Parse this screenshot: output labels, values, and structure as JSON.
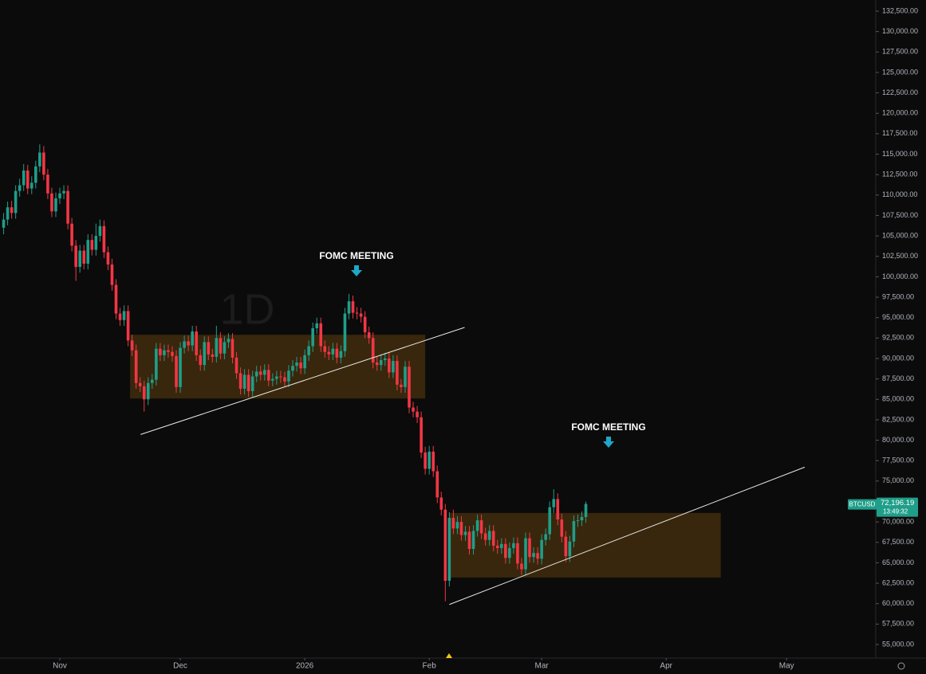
{
  "chart_data": {
    "type": "candlestick",
    "watermark": "1D",
    "symbol": "BTCUSD",
    "last_price_label": "72,196.19",
    "countdown": "13:49:32",
    "up_color": "#1f9e89",
    "down_color": "#f23645",
    "x": [
      -14,
      -13,
      -12,
      -11,
      -10,
      -9,
      -8,
      -7,
      -6,
      -5,
      -4,
      -3,
      -2,
      -1,
      0,
      1,
      2,
      3,
      4,
      5,
      6,
      7,
      8,
      9,
      10,
      11,
      12,
      13,
      14,
      15,
      16,
      17,
      18,
      19,
      20,
      21,
      22,
      23,
      24,
      25,
      26,
      27,
      28,
      29,
      30,
      31,
      32,
      33,
      34,
      35,
      36,
      37,
      38,
      39,
      40,
      41,
      42,
      43,
      44,
      45,
      46,
      47,
      48,
      49,
      50,
      51,
      52,
      53,
      54,
      55,
      56,
      57,
      58,
      59,
      60,
      61,
      62,
      63,
      64,
      65,
      66,
      67,
      68,
      69,
      70,
      71,
      72,
      73,
      74,
      75,
      76,
      77,
      78,
      79,
      80,
      81,
      82,
      83,
      84,
      85,
      86,
      87,
      88,
      89,
      90,
      91,
      92,
      93,
      94,
      95,
      96,
      97,
      98,
      99,
      100,
      101,
      102,
      103,
      104,
      105,
      106,
      107,
      108,
      109,
      110,
      111,
      112,
      113,
      114,
      115,
      116,
      117,
      118,
      119,
      120,
      121,
      122,
      123,
      124,
      125,
      126,
      127,
      128,
      129,
      130,
      131
    ],
    "open": [
      106000,
      107000,
      108500,
      107800,
      110500,
      111200,
      113000,
      110800,
      111500,
      113500,
      115200,
      112500,
      110200,
      108000,
      109600,
      110200,
      110500,
      106500,
      103800,
      101200,
      103200,
      101600,
      104500,
      103300,
      105000,
      106200,
      103000,
      101500,
      99000,
      95500,
      94700,
      95800,
      92200,
      91000,
      87000,
      86600,
      85000,
      87000,
      87400,
      91200,
      90400,
      91000,
      90800,
      90300,
      86500,
      91300,
      92100,
      91600,
      93300,
      90400,
      89200,
      92000,
      90500,
      90200,
      92500,
      90600,
      92000,
      92400,
      90100,
      88200,
      86300,
      88000,
      86000,
      87800,
      88400,
      88000,
      88600,
      87300,
      87500,
      87800,
      87700,
      87200,
      88500,
      89100,
      89500,
      88800,
      90400,
      91500,
      93700,
      94300,
      91500,
      90800,
      90500,
      91200,
      90100,
      90900,
      95500,
      97000,
      95600,
      95500,
      95100,
      93200,
      92500,
      89500,
      89200,
      89800,
      90000,
      88300,
      89700,
      86800,
      86500,
      89000,
      84000,
      83500,
      82800,
      78500,
      76500,
      78600,
      76200,
      73000,
      71500,
      62800,
      70500,
      69200,
      70000,
      68400,
      68800,
      66700,
      68900,
      70200,
      68600,
      67800,
      68900,
      67100,
      66800,
      67300,
      65600,
      66800,
      67400,
      64900,
      64200,
      68000,
      65700,
      66200,
      65500,
      67800,
      68500,
      71800,
      72800,
      70300,
      68200,
      65800,
      67600,
      70100,
      70200,
      70600
    ],
    "high": [
      107800,
      109200,
      109300,
      111200,
      112000,
      113800,
      113700,
      112300,
      114200,
      116200,
      116000,
      113200,
      110900,
      110300,
      110900,
      111200,
      111200,
      107200,
      104500,
      103900,
      103900,
      105200,
      105200,
      106500,
      107000,
      106900,
      103700,
      102200,
      99700,
      96200,
      96500,
      96500,
      92900,
      91700,
      87700,
      87300,
      87700,
      88100,
      91900,
      91900,
      91700,
      91700,
      91500,
      91000,
      92000,
      92800,
      92800,
      94000,
      94000,
      91100,
      92700,
      92700,
      91200,
      94000,
      93200,
      92700,
      93100,
      93100,
      90800,
      88900,
      88700,
      88700,
      88500,
      89100,
      89100,
      89300,
      89300,
      88200,
      88500,
      88500,
      88400,
      89200,
      89800,
      90200,
      90200,
      91100,
      92200,
      94400,
      95000,
      95000,
      92200,
      91500,
      91900,
      91900,
      91600,
      96200,
      97900,
      97700,
      96300,
      96200,
      95800,
      93900,
      93200,
      90200,
      90500,
      90700,
      90700,
      90400,
      90400,
      87500,
      89700,
      89700,
      84700,
      84200,
      83500,
      79200,
      79300,
      79300,
      76900,
      73700,
      72200,
      71200,
      71500,
      70700,
      70700,
      69500,
      69500,
      69600,
      70900,
      70900,
      69300,
      69600,
      69600,
      67800,
      68000,
      68000,
      67500,
      68100,
      68100,
      65600,
      68700,
      68700,
      66900,
      66900,
      68500,
      69200,
      72500,
      74000,
      73500,
      71000,
      68900,
      68300,
      70800,
      70900,
      71300,
      72500
    ],
    "low": [
      105200,
      106300,
      107100,
      107100,
      109800,
      110500,
      110100,
      110100,
      110800,
      112800,
      111800,
      109500,
      107300,
      107300,
      108900,
      109500,
      105800,
      103100,
      99500,
      100500,
      100900,
      100900,
      102600,
      102600,
      104300,
      102300,
      100800,
      98300,
      94800,
      94000,
      94000,
      91500,
      90300,
      86300,
      85900,
      83500,
      84300,
      86300,
      86700,
      89700,
      89700,
      90100,
      89600,
      85800,
      85800,
      90600,
      90900,
      90900,
      89700,
      88500,
      88500,
      89800,
      89500,
      89500,
      89900,
      89900,
      91300,
      89400,
      87500,
      85600,
      85600,
      85300,
      85300,
      87100,
      87300,
      87300,
      86600,
      86600,
      86800,
      87000,
      86500,
      86500,
      87800,
      88400,
      88100,
      88100,
      89700,
      90800,
      93000,
      90800,
      90100,
      89800,
      89800,
      89400,
      89400,
      90200,
      94800,
      94900,
      94800,
      94400,
      92500,
      91800,
      88800,
      88500,
      88500,
      89100,
      87600,
      87600,
      86100,
      85800,
      85800,
      83300,
      82800,
      82100,
      77800,
      75800,
      75800,
      75500,
      72300,
      70800,
      60300,
      62100,
      68500,
      68500,
      67700,
      67700,
      66000,
      66000,
      68200,
      67900,
      67100,
      67100,
      66400,
      66100,
      66100,
      64900,
      64900,
      66100,
      64200,
      63500,
      63500,
      65000,
      65000,
      64800,
      64800,
      67100,
      67800,
      71100,
      69600,
      67500,
      65100,
      65100,
      66900,
      69400,
      69500,
      69900
    ],
    "close": [
      107000,
      108500,
      107800,
      110500,
      111200,
      113000,
      110800,
      111500,
      113500,
      115200,
      112500,
      110200,
      108000,
      109600,
      110200,
      110500,
      106500,
      103800,
      101200,
      103200,
      101600,
      104500,
      103300,
      105000,
      106200,
      103000,
      101500,
      99000,
      95500,
      94700,
      95800,
      92200,
      91000,
      87000,
      86600,
      85000,
      87000,
      87400,
      91200,
      90400,
      91000,
      90800,
      90300,
      86500,
      91300,
      92100,
      91600,
      93300,
      90400,
      89200,
      92000,
      90500,
      90200,
      92500,
      90600,
      92000,
      92400,
      90100,
      88200,
      86300,
      88000,
      86000,
      87800,
      88400,
      88000,
      88600,
      87300,
      87500,
      87800,
      87700,
      87200,
      88500,
      89100,
      89500,
      88800,
      90400,
      91500,
      93700,
      94300,
      91500,
      90800,
      90500,
      91200,
      90100,
      90900,
      95500,
      97000,
      95600,
      95500,
      95100,
      93200,
      92500,
      89500,
      89200,
      89800,
      90000,
      88300,
      89700,
      86800,
      86500,
      89000,
      84000,
      83500,
      82800,
      78500,
      76500,
      78600,
      76200,
      73000,
      71500,
      62800,
      70500,
      69200,
      70000,
      68400,
      68800,
      66700,
      68900,
      70200,
      68600,
      67800,
      68900,
      67100,
      66800,
      67300,
      65600,
      66800,
      67400,
      64900,
      64200,
      68000,
      65700,
      66200,
      65500,
      67800,
      68500,
      71800,
      72800,
      70300,
      68200,
      65800,
      67600,
      70100,
      70200,
      70600,
      72196.19
    ],
    "xlim": [
      -14.9,
      203.2
    ],
    "ylim": [
      53440,
      133865
    ],
    "xticks": [
      {
        "value": 0,
        "label": "Nov"
      },
      {
        "value": 30,
        "label": "Dec"
      },
      {
        "value": 61,
        "label": "2026"
      },
      {
        "value": 92,
        "label": "Feb"
      },
      {
        "value": 120,
        "label": "Mar"
      },
      {
        "value": 151,
        "label": "Apr"
      },
      {
        "value": 181,
        "label": "May"
      }
    ],
    "yticks": [
      {
        "value": 55000,
        "label": "55,000.00"
      },
      {
        "value": 57500,
        "label": "57,500.00"
      },
      {
        "value": 60000,
        "label": "60,000.00"
      },
      {
        "value": 62500,
        "label": "62,500.00"
      },
      {
        "value": 65000,
        "label": "65,000.00"
      },
      {
        "value": 67500,
        "label": "67,500.00"
      },
      {
        "value": 70000,
        "label": "70,000.00"
      },
      {
        "value": 72500,
        "label": "72,500.00"
      },
      {
        "value": 75000,
        "label": "75,000.00"
      },
      {
        "value": 77500,
        "label": "77,500.00"
      },
      {
        "value": 80000,
        "label": "80,000.00"
      },
      {
        "value": 82500,
        "label": "82,500.00"
      },
      {
        "value": 85000,
        "label": "85,000.00"
      },
      {
        "value": 87500,
        "label": "87,500.00"
      },
      {
        "value": 90000,
        "label": "90,000.00"
      },
      {
        "value": 92500,
        "label": "92,500.00"
      },
      {
        "value": 95000,
        "label": "95,000.00"
      },
      {
        "value": 97500,
        "label": "97,500.00"
      },
      {
        "value": 100000,
        "label": "100,000.00"
      },
      {
        "value": 102500,
        "label": "102,500.00"
      },
      {
        "value": 105000,
        "label": "105,000.00"
      },
      {
        "value": 107500,
        "label": "107,500.00"
      },
      {
        "value": 110000,
        "label": "110,000.00"
      },
      {
        "value": 112500,
        "label": "112,500.00"
      },
      {
        "value": 115000,
        "label": "115,000.00"
      },
      {
        "value": 117500,
        "label": "117,500.00"
      },
      {
        "value": 120000,
        "label": "120,000.00"
      },
      {
        "value": 122500,
        "label": "122,500.00"
      },
      {
        "value": 125000,
        "label": "125,000.00"
      },
      {
        "value": 127500,
        "label": "127,500.00"
      },
      {
        "value": 130000,
        "label": "130,000.00"
      },
      {
        "value": 132500,
        "label": "132,500.00"
      }
    ],
    "zones": [
      {
        "x": [
          17.5,
          91
        ],
        "y": [
          85100,
          92900
        ]
      },
      {
        "x": [
          97,
          164.6
        ],
        "y": [
          63200,
          71100
        ]
      }
    ],
    "trendlines": [
      {
        "x": [
          20.1,
          100.8
        ],
        "y": [
          80700,
          93800
        ]
      },
      {
        "x": [
          97,
          185.5
        ],
        "y": [
          59900,
          76700
        ]
      }
    ],
    "annotations": [
      "FOMC MEETING",
      "FOMC MEETING"
    ]
  }
}
